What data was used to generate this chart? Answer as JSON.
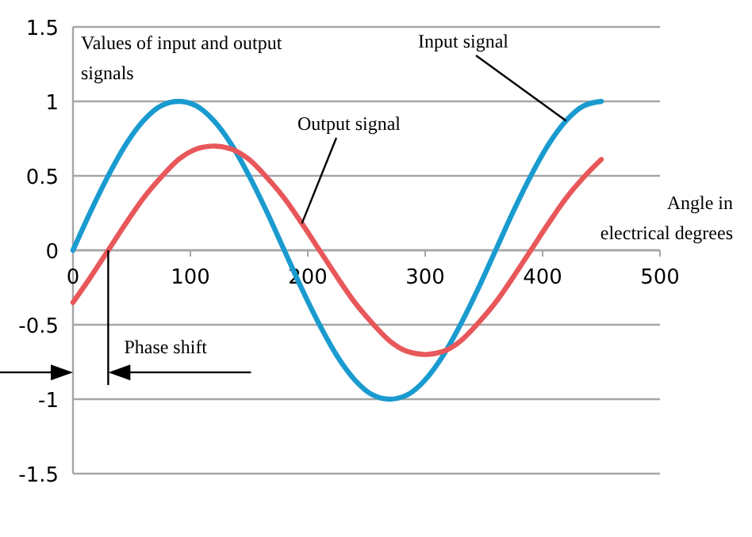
{
  "chart_data": {
    "type": "line",
    "xlabel": "Angle in electrical degrees",
    "ylabel": "Values of input and output signals",
    "x": [
      0,
      15,
      30,
      45,
      60,
      75,
      90,
      105,
      120,
      135,
      150,
      165,
      180,
      195,
      210,
      225,
      240,
      255,
      270,
      285,
      300,
      315,
      330,
      345,
      360,
      375,
      390,
      405,
      420,
      435,
      450
    ],
    "series": [
      {
        "name": "Input signal",
        "color": "#1a9bd0",
        "values": [
          0,
          0.26,
          0.5,
          0.71,
          0.87,
          0.97,
          1,
          0.97,
          0.87,
          0.71,
          0.5,
          0.26,
          0,
          -0.26,
          -0.5,
          -0.71,
          -0.87,
          -0.97,
          -1,
          -0.97,
          -0.87,
          -0.71,
          -0.5,
          -0.26,
          0,
          0.26,
          0.5,
          0.71,
          0.87,
          0.97,
          1
        ]
      },
      {
        "name": "Output signal",
        "color": "#e8575a",
        "values": [
          -0.35,
          -0.18,
          0,
          0.18,
          0.35,
          0.49,
          0.61,
          0.68,
          0.7,
          0.68,
          0.61,
          0.49,
          0.35,
          0.18,
          0,
          -0.18,
          -0.35,
          -0.49,
          -0.61,
          -0.68,
          -0.7,
          -0.68,
          -0.61,
          -0.49,
          -0.35,
          -0.18,
          0,
          0.18,
          0.35,
          0.49,
          0.61
        ]
      }
    ],
    "xlim": [
      0,
      500
    ],
    "xticks": [
      0,
      100,
      200,
      300,
      400,
      500
    ],
    "ylim": [
      -1.5,
      1.5
    ],
    "yticks": [
      -1.5,
      -1,
      -0.5,
      0,
      0.5,
      1,
      1.5
    ],
    "grid": "y",
    "marker": "none",
    "line_style": "solid",
    "annotations": [
      "Phase shift"
    ]
  }
}
